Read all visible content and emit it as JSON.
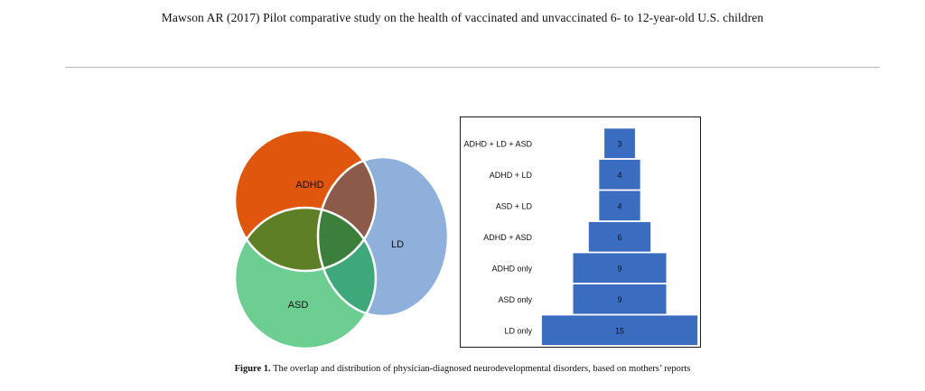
{
  "header": {
    "title": "Mawson AR (2017) Pilot comparative study on the health of vaccinated and unvaccinated 6- to 12-year-old U.S. children"
  },
  "venn": {
    "sets": [
      {
        "label": "ADHD",
        "color": "#e0560d"
      },
      {
        "label": "LD",
        "color": "#8fb0da"
      },
      {
        "label": "ASD",
        "color": "#6dce92"
      }
    ],
    "overlap_colors": {
      "adhd_ld": "#8b5a48",
      "adhd_asd": "#5e7f26",
      "asd_ld": "#3fa87a",
      "all": "#3c7f3c"
    }
  },
  "chart_data": {
    "type": "bar",
    "orientation": "horizontal-centered",
    "categories": [
      "ADHD + LD + ASD",
      "ADHD + LD",
      "ASD + LD",
      "ADHD + ASD",
      "ADHD only",
      "ASD only",
      "LD only"
    ],
    "values": [
      3,
      4,
      4,
      6,
      9,
      9,
      15
    ],
    "bar_color": "#3a6cc0",
    "title": "",
    "xlabel": "",
    "ylabel": ""
  },
  "caption": {
    "label": "Figure 1.",
    "text": " The overlap and distribution of physician-diagnosed neurodevelopmental disorders, based on mothers’ reports"
  }
}
